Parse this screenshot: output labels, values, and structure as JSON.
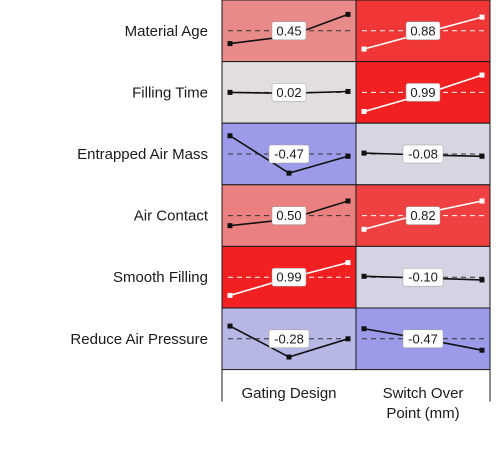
{
  "chart_data": {
    "type": "heatmap",
    "title": "",
    "rows": [
      "Material Age",
      "Filling Time",
      "Entrapped Air Mass",
      "Air Contact",
      "Smooth Filling",
      "Reduce Air Pressure"
    ],
    "columns": [
      {
        "lines": [
          "Gating Design"
        ]
      },
      {
        "lines": [
          "Switch Over",
          "Point (mm)"
        ]
      }
    ],
    "cells": [
      [
        {
          "corr": 0.45,
          "label": "0.45",
          "trend": [
            0.22,
            0.38,
            0.86
          ]
        },
        {
          "corr": 0.88,
          "label": "0.88",
          "trend": [
            0.1,
            0.45,
            0.8
          ]
        }
      ],
      [
        {
          "corr": 0.02,
          "label": "0.02",
          "trend": [
            0.5,
            0.48,
            0.52
          ]
        },
        {
          "corr": 0.99,
          "label": "0.99",
          "trend": [
            0.08,
            0.45,
            0.88
          ]
        }
      ],
      [
        {
          "corr": -0.47,
          "label": "-0.47",
          "trend": [
            0.9,
            0.08,
            0.45
          ]
        },
        {
          "corr": -0.08,
          "label": "-0.08",
          "trend": [
            0.52,
            0.48,
            0.45
          ]
        }
      ],
      [
        {
          "corr": 0.5,
          "label": "0.50",
          "trend": [
            0.28,
            0.42,
            0.82
          ]
        },
        {
          "corr": 0.82,
          "label": "0.82",
          "trend": [
            0.2,
            0.55,
            0.82
          ]
        }
      ],
      [
        {
          "corr": 0.99,
          "label": "0.99",
          "trend": [
            0.1,
            0.48,
            0.82
          ]
        },
        {
          "corr": -0.1,
          "label": "-0.10",
          "trend": [
            0.52,
            0.48,
            0.44
          ]
        }
      ],
      [
        {
          "corr": -0.28,
          "label": "-0.28",
          "trend": [
            0.78,
            0.1,
            0.5
          ]
        },
        {
          "corr": -0.47,
          "label": "-0.47",
          "trend": [
            0.72,
            0.5,
            0.25
          ]
        }
      ]
    ],
    "color_scale": {
      "negative": "#4a4af2",
      "zero": "#e2e2e2",
      "positive": "#f21e1e"
    },
    "grid": false
  }
}
